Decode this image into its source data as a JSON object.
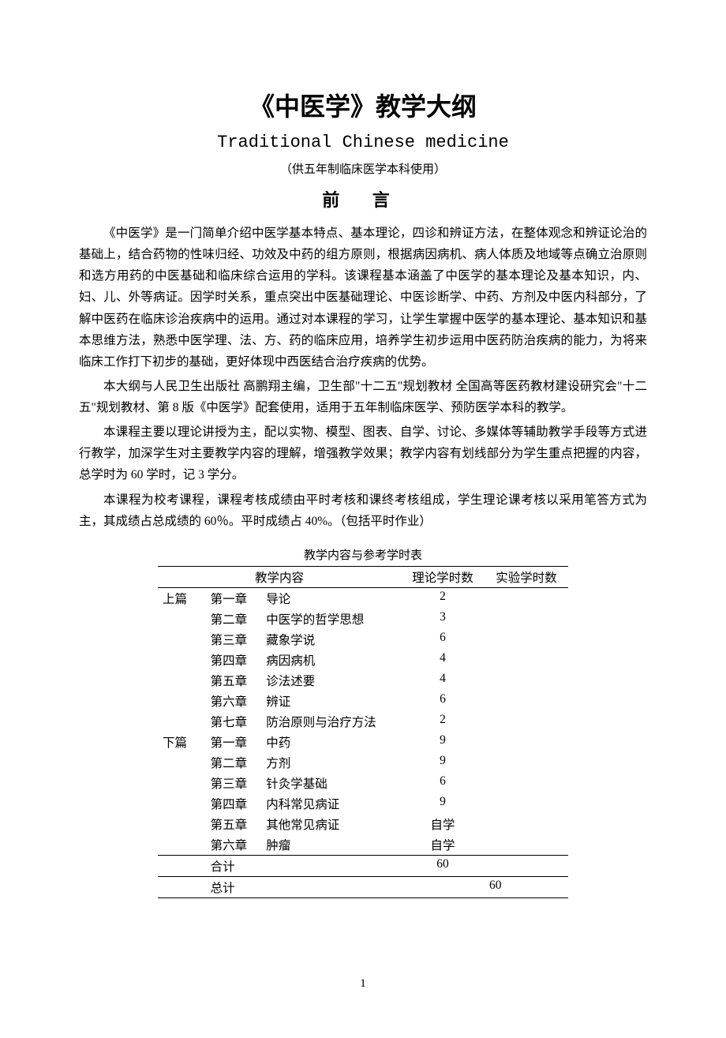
{
  "title": {
    "main": "《中医学》教学大纲",
    "sub": "Traditional Chinese medicine",
    "note": "（供五年制临床医学本科使用）"
  },
  "preface": {
    "heading": "前 言",
    "p1": "《中医学》是一门简单介绍中医学基本特点、基本理论，四诊和辨证方法，在整体观念和辨证论治的基础上，结合药物的性味归经、功效及中药的组方原则，根据病因病机、病人体质及地域等点确立治原则和选方用药的中医基础和临床综合运用的学科。该课程基本涵盖了中医学的基本理论及基本知识，内、妇、儿、外等病证。因学时关系，重点突出中医基础理论、中医诊断学、中药、方剂及中医内科部分，了解中医药在临床诊治疾病中的运用。通过对本课程的学习，让学生掌握中医学的基本理论、基本知识和基本思维方法，熟悉中医学理、法、方、药的临床应用，培养学生初步运用中医药防治疾病的能力，为将来临床工作打下初步的基础，更好体现中西医结合治疗疾病的优势。",
    "p2": "本大纲与人民卫生出版社 高鹏翔主编，卫生部\"十二五\"规划教材 全国高等医药教材建设研究会\"十二五\"规划教材、第 8 版《中医学》配套使用，适用于五年制临床医学、预防医学本科的教学。",
    "p3": "本课程主要以理论讲授为主，配以实物、模型、图表、自学、讨论、多媒体等辅助教学手段等方式进行教学，加深学生对主要教学内容的理解，增强教学效果；教学内容有划线部分为学生重点把握的内容，总学时为 60 学时，记 3 学分。",
    "p4": "本课程为校考课程，课程考核成绩由平时考核和课终考核组成，学生理论课考核以采用笔答方式为主，其成绩占总成绩的 60％。平时成绩占 40%。（包括平时作业）"
  },
  "table": {
    "caption": "教学内容与参考学时表",
    "headers": {
      "content": "教学内容",
      "theory": "理论学时数",
      "lab": "实验学时数"
    },
    "rows": [
      {
        "section": "上篇",
        "chapter": "第一章",
        "name": "导论",
        "theory": "2",
        "lab": ""
      },
      {
        "section": "",
        "chapter": "第二章",
        "name": "中医学的哲学思想",
        "theory": "3",
        "lab": ""
      },
      {
        "section": "",
        "chapter": "第三章",
        "name": "藏象学说",
        "theory": "6",
        "lab": ""
      },
      {
        "section": "",
        "chapter": "第四章",
        "name": "病因病机",
        "theory": "4",
        "lab": ""
      },
      {
        "section": "",
        "chapter": "第五章",
        "name": "诊法述要",
        "theory": "4",
        "lab": ""
      },
      {
        "section": "",
        "chapter": "第六章",
        "name": "辨证",
        "theory": "6",
        "lab": ""
      },
      {
        "section": "",
        "chapter": "第七章",
        "name": "防治原则与治疗方法",
        "theory": "2",
        "lab": ""
      },
      {
        "section": "下篇",
        "chapter": "第一章",
        "name": "中药",
        "theory": "9",
        "lab": ""
      },
      {
        "section": "",
        "chapter": "第二章",
        "name": "方剂",
        "theory": "9",
        "lab": ""
      },
      {
        "section": "",
        "chapter": "第三章",
        "name": "针灸学基础",
        "theory": "6",
        "lab": ""
      },
      {
        "section": "",
        "chapter": "第四章",
        "name": "内科常见病证",
        "theory": "9",
        "lab": ""
      },
      {
        "section": "",
        "chapter": "第五章",
        "name": "其他常见病证",
        "theory": "自学",
        "lab": ""
      },
      {
        "section": "",
        "chapter": "第六章",
        "name": "肿瘤",
        "theory": "自学",
        "lab": ""
      }
    ],
    "subtotal": {
      "label": "合计",
      "theory": "60",
      "lab": ""
    },
    "total": {
      "label": "总计",
      "value": "60"
    }
  },
  "page_number": "1"
}
